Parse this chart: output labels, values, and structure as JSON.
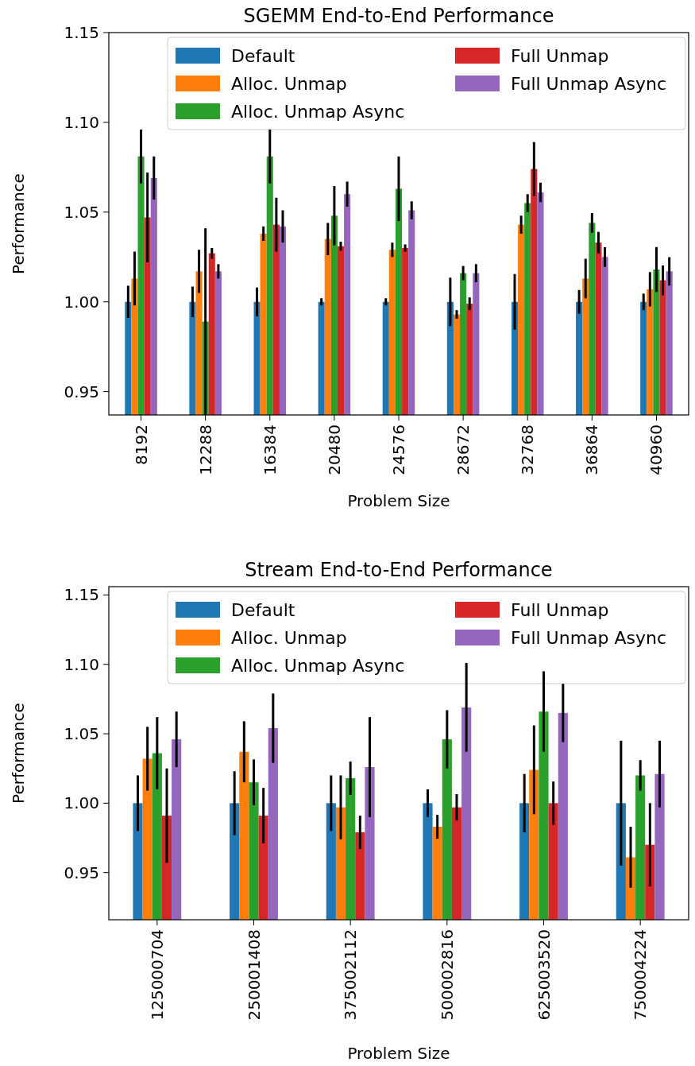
{
  "chart_data": [
    {
      "type": "bar",
      "title": "SGEMM End-to-End Performance",
      "xlabel": "Problem Size",
      "ylabel": "Performance",
      "categories": [
        "8192",
        "12288",
        "16384",
        "20480",
        "24576",
        "28672",
        "32768",
        "36864",
        "40960"
      ],
      "ylim": [
        0.937,
        1.15
      ],
      "yticks": [
        {
          "value": 0.95,
          "label": "0.95"
        },
        {
          "value": 1.0,
          "label": "1.00"
        },
        {
          "value": 1.05,
          "label": "1.05"
        },
        {
          "value": 1.1,
          "label": "1.10"
        },
        {
          "value": 1.15,
          "label": "1.15"
        }
      ],
      "grid": false,
      "legend": "top right",
      "series": [
        {
          "name": "Default",
          "color": "#1f77b4",
          "values": [
            1.0,
            1.0,
            1.0,
            1.0,
            1.0,
            1.0,
            1.0,
            1.0,
            1.0
          ],
          "errors": [
            0.009,
            0.0085,
            0.008,
            0.002,
            0.002,
            0.0135,
            0.0155,
            0.0066,
            0.0046
          ]
        },
        {
          "name": "Alloc. Unmap",
          "color": "#ff7f0e",
          "values": [
            1.013,
            1.017,
            1.038,
            1.035,
            1.029,
            0.993,
            1.043,
            1.013,
            1.007
          ],
          "errors": [
            0.015,
            0.012,
            0.004,
            0.009,
            0.004,
            0.0024,
            0.005,
            0.011,
            0.0096
          ]
        },
        {
          "name": "Alloc. Unmap Async",
          "color": "#2ca02c",
          "values": [
            1.081,
            0.989,
            1.081,
            1.048,
            1.063,
            1.016,
            1.055,
            1.044,
            1.018
          ],
          "errors": [
            0.015,
            0.052,
            0.015,
            0.0165,
            0.018,
            0.004,
            0.005,
            0.0055,
            0.0125
          ]
        },
        {
          "name": "Full Unmap",
          "color": "#d62728",
          "values": [
            1.047,
            1.027,
            1.043,
            1.031,
            1.03,
            0.999,
            1.074,
            1.033,
            1.012
          ],
          "errors": [
            0.025,
            0.003,
            0.015,
            0.0025,
            0.002,
            0.0035,
            0.015,
            0.006,
            0.0083
          ]
        },
        {
          "name": "Full Unmap Async",
          "color": "#9467bd",
          "values": [
            1.069,
            1.017,
            1.042,
            1.06,
            1.051,
            1.016,
            1.061,
            1.025,
            1.017
          ],
          "errors": [
            0.012,
            0.004,
            0.009,
            0.007,
            0.005,
            0.005,
            0.0054,
            0.0055,
            0.0079
          ]
        }
      ]
    },
    {
      "type": "bar",
      "title": "Stream End-to-End Performance",
      "xlabel": "Problem Size",
      "ylabel": "Performance",
      "categories": [
        "125000704",
        "250001408",
        "375002112",
        "500002816",
        "625003520",
        "750004224"
      ],
      "ylim": [
        0.916,
        1.156
      ],
      "yticks": [
        {
          "value": 0.95,
          "label": "0.95"
        },
        {
          "value": 1.0,
          "label": "1.00"
        },
        {
          "value": 1.05,
          "label": "1.05"
        },
        {
          "value": 1.1,
          "label": "1.10"
        },
        {
          "value": 1.15,
          "label": "1.15"
        }
      ],
      "grid": false,
      "legend": "top right",
      "series": [
        {
          "name": "Default",
          "color": "#1f77b4",
          "values": [
            1.0,
            1.0,
            1.0,
            1.0,
            1.0,
            1.0
          ],
          "errors": [
            0.02,
            0.023,
            0.02,
            0.01,
            0.021,
            0.045
          ]
        },
        {
          "name": "Alloc. Unmap",
          "color": "#ff7f0e",
          "values": [
            1.032,
            1.037,
            0.997,
            0.983,
            1.024,
            0.961
          ],
          "errors": [
            0.023,
            0.022,
            0.023,
            0.0086,
            0.032,
            0.022
          ]
        },
        {
          "name": "Alloc. Unmap Async",
          "color": "#2ca02c",
          "values": [
            1.036,
            1.015,
            1.018,
            1.046,
            1.066,
            1.02
          ],
          "errors": [
            0.026,
            0.0165,
            0.012,
            0.021,
            0.029,
            0.011
          ]
        },
        {
          "name": "Full Unmap",
          "color": "#d62728",
          "values": [
            0.991,
            0.991,
            0.979,
            0.997,
            1.0,
            0.97
          ],
          "errors": [
            0.034,
            0.02,
            0.012,
            0.0095,
            0.0156,
            0.03
          ]
        },
        {
          "name": "Full Unmap Async",
          "color": "#9467bd",
          "values": [
            1.046,
            1.054,
            1.026,
            1.069,
            1.065,
            1.021
          ],
          "errors": [
            0.02,
            0.025,
            0.036,
            0.032,
            0.021,
            0.024
          ]
        }
      ]
    }
  ]
}
